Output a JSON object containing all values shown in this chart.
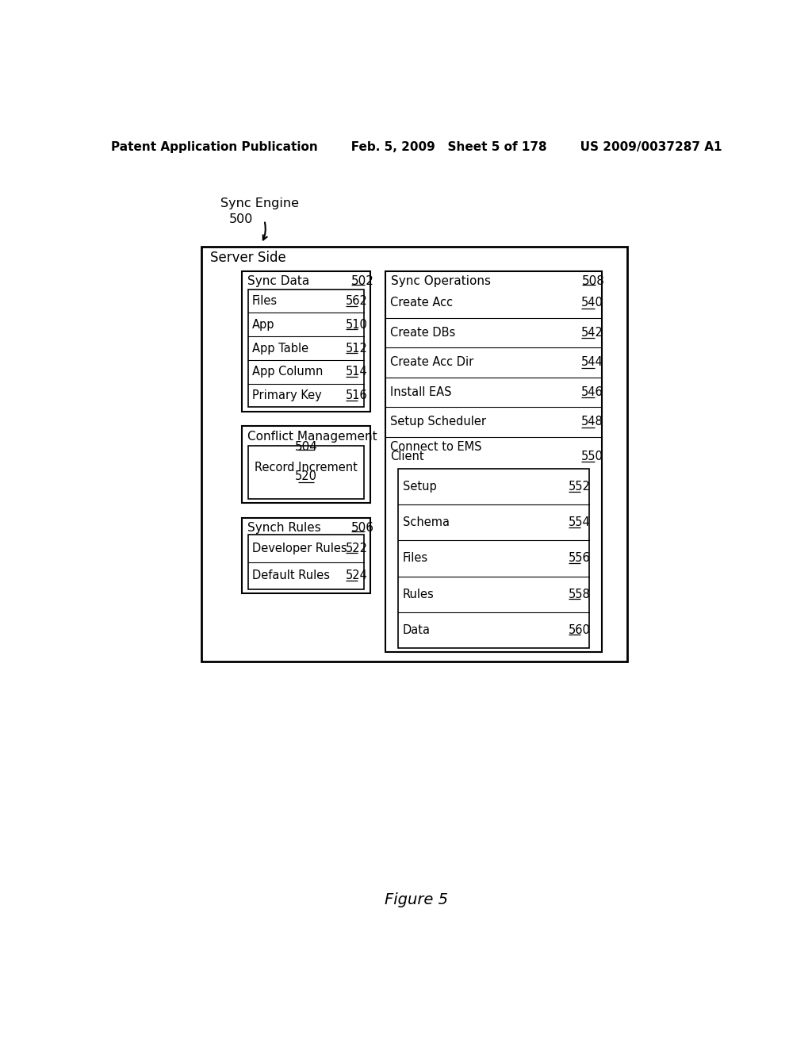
{
  "header_left": "Patent Application Publication",
  "header_mid": "Feb. 5, 2009   Sheet 5 of 178",
  "header_right": "US 2009/0037287 A1",
  "figure_label": "Figure 5",
  "label_sync_engine": "Sync Engine",
  "label_500": "500",
  "label_server_side": "Server Side",
  "sync_data_title": "Sync Data",
  "sync_data_num": "502",
  "sync_data_items": [
    {
      "label": "Files",
      "num": "562"
    },
    {
      "label": "App",
      "num": "510"
    },
    {
      "label": "App Table",
      "num": "512"
    },
    {
      "label": "App Column",
      "num": "514"
    },
    {
      "label": "Primary Key",
      "num": "516"
    }
  ],
  "conflict_mgmt_title": "Conflict Management",
  "conflict_mgmt_num": "504",
  "conflict_mgmt_item": {
    "label": "Record Increment",
    "num": "520"
  },
  "synch_rules_title": "Synch Rules",
  "synch_rules_num": "506",
  "synch_rules_items": [
    {
      "label": "Developer Rules",
      "num": "522"
    },
    {
      "label": "Default Rules",
      "num": "524"
    }
  ],
  "sync_ops_title": "Sync Operations",
  "sync_ops_num": "508",
  "sync_ops_items": [
    {
      "label": "Create Acc",
      "num": "540"
    },
    {
      "label": "Create DBs",
      "num": "542"
    },
    {
      "label": "Create Acc Dir",
      "num": "544"
    },
    {
      "label": "Install EAS",
      "num": "546"
    },
    {
      "label": "Setup Scheduler",
      "num": "548"
    },
    {
      "label": "Connect to EMS\nClient",
      "num": "550"
    }
  ],
  "ems_sub_items": [
    {
      "label": "Setup",
      "num": "552"
    },
    {
      "label": "Schema",
      "num": "554"
    },
    {
      "label": "Files",
      "num": "556"
    },
    {
      "label": "Rules",
      "num": "558"
    },
    {
      "label": "Data",
      "num": "560"
    }
  ]
}
